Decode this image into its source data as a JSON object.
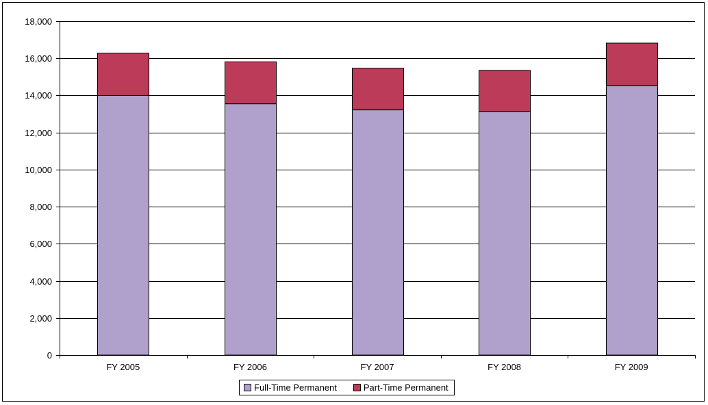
{
  "chart_data": {
    "type": "bar",
    "stacked": true,
    "categories": [
      "FY 2005",
      "FY 2006",
      "FY 2007",
      "FY 2008",
      "FY 2009"
    ],
    "series": [
      {
        "name": "Full-Time Permanent",
        "color": "#b0a0cc",
        "values": [
          14000,
          13550,
          13220,
          13120,
          14520
        ]
      },
      {
        "name": "Part-Time Permanent",
        "color": "#bb3b59",
        "values": [
          2280,
          2260,
          2250,
          2230,
          2300
        ]
      }
    ],
    "ylim": [
      0,
      18000
    ],
    "y_ticks": [
      "0",
      "2,000",
      "4,000",
      "6,000",
      "8,000",
      "10,000",
      "12,000",
      "14,000",
      "16,000",
      "18,000"
    ],
    "grid": true,
    "legend_position": "bottom"
  }
}
